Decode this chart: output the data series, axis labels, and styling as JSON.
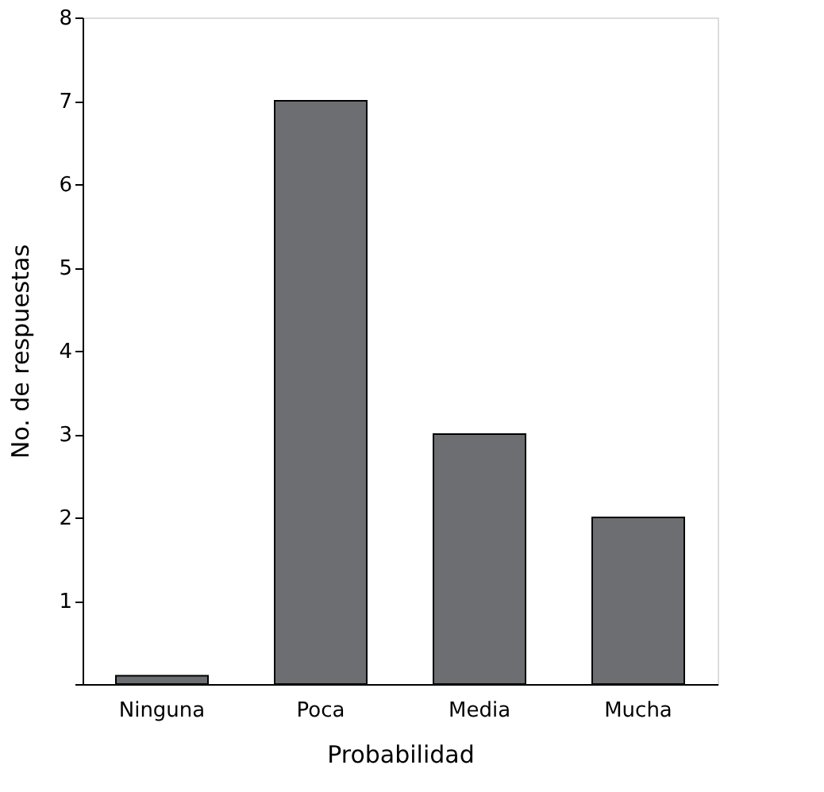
{
  "chart_data": {
    "type": "bar",
    "xlabel": "Probabilidad",
    "ylabel": "No. de respuestas",
    "categories": [
      "Ninguna",
      "Poca",
      "Media",
      "Mucha"
    ],
    "values": [
      0.1,
      7,
      3,
      2
    ],
    "color": "#6d6e71",
    "ylim": [
      0,
      8
    ],
    "yticks": [
      {
        "value": 0,
        "label": null
      },
      1,
      2,
      3,
      4,
      5,
      6,
      7,
      8
    ],
    "grid": false
  }
}
